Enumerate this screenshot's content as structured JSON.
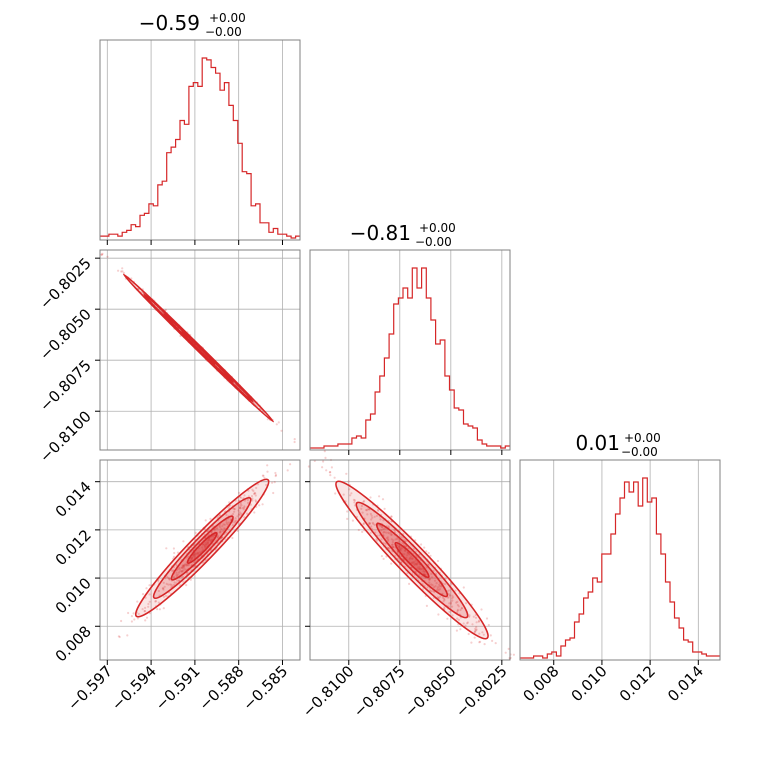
{
  "figure": {
    "colors": {
      "line": "#d62728",
      "grid": "#b0b0b0",
      "frame": "#808080",
      "text": "#000000"
    }
  },
  "titles": [
    {
      "main": "−0.59",
      "sup": "+0.00",
      "sub": "−0.00"
    },
    {
      "main": "−0.81",
      "sup": "+0.00",
      "sub": "−0.00"
    },
    {
      "main": "0.01",
      "sup": "+0.00",
      "sub": "−0.00"
    }
  ],
  "chart_data": [
    {
      "type": "histogram",
      "panel": "diag-p1",
      "xlim": [
        -0.5975,
        -0.5838
      ],
      "x_ticks": [
        -0.597,
        -0.594,
        -0.591,
        -0.588,
        -0.585
      ],
      "x_tick_labels": [
        "−0.597",
        "−0.594",
        "−0.591",
        "−0.588",
        "−0.585"
      ],
      "bin_edges": [
        -0.5975,
        -0.5838
      ],
      "counts": [
        1,
        1,
        2,
        2,
        1,
        3,
        4,
        7,
        6,
        12,
        13,
        18,
        17,
        28,
        30,
        45,
        48,
        52,
        62,
        60,
        80,
        82,
        80,
        95,
        94,
        90,
        87,
        78,
        82,
        70,
        62,
        50,
        35,
        34,
        17,
        18,
        8,
        8,
        3,
        5,
        2,
        2,
        1,
        0,
        1
      ]
    },
    {
      "type": "histogram",
      "panel": "diag-p2",
      "xlim": [
        -0.8119,
        -0.8021
      ],
      "x_ticks": [
        -0.81,
        -0.8075,
        -0.805,
        -0.8025
      ],
      "x_tick_labels": [
        "−0.8100",
        "−0.8075",
        "−0.8050",
        "−0.8025"
      ],
      "bin_edges": [
        -0.8119,
        -0.8021
      ],
      "counts": [
        0,
        0,
        0,
        1,
        1,
        1,
        2,
        2,
        2,
        5,
        6,
        5,
        14,
        17,
        28,
        36,
        45,
        57,
        72,
        75,
        80,
        75,
        90,
        80,
        90,
        75,
        64,
        52,
        54,
        36,
        29,
        20,
        19,
        12,
        11,
        10,
        4,
        2,
        1,
        1,
        1,
        0,
        1
      ]
    },
    {
      "type": "histogram",
      "panel": "diag-p3",
      "xlim": [
        0.0066,
        0.0149
      ],
      "x_ticks": [
        0.008,
        0.01,
        0.012,
        0.014
      ],
      "x_tick_labels": [
        "0.008",
        "0.010",
        "0.012",
        "0.014"
      ],
      "bin_edges": [
        0.0066,
        0.0149
      ],
      "counts": [
        0,
        0,
        0,
        1,
        1,
        0,
        2,
        3,
        1,
        6,
        9,
        10,
        18,
        22,
        30,
        33,
        40,
        38,
        52,
        52,
        62,
        72,
        80,
        88,
        83,
        88,
        76,
        90,
        78,
        80,
        62,
        52,
        38,
        28,
        20,
        15,
        9,
        8,
        3,
        3,
        2,
        1,
        1,
        1
      ]
    },
    {
      "type": "scatter",
      "panel": "p1-vs-p2",
      "xlim": [
        -0.5975,
        -0.5838
      ],
      "ylim": [
        -0.8119,
        -0.8021
      ],
      "y_ticks": [
        -0.8025,
        -0.805,
        -0.8075,
        -0.81
      ],
      "y_tick_labels": [
        "−0.8025",
        "−0.8050",
        "−0.8075",
        "−0.8100"
      ],
      "correlation": "negative",
      "trend": {
        "x": [
          -0.597,
          -0.5845
        ],
        "y": [
          -0.8025,
          -0.8113
        ]
      }
    },
    {
      "type": "scatter",
      "panel": "p1-vs-p3",
      "xlim": [
        -0.5975,
        -0.5838
      ],
      "ylim": [
        0.0066,
        0.0149
      ],
      "y_ticks": [
        0.014,
        0.012,
        0.01,
        0.008
      ],
      "y_tick_labels": [
        "0.014",
        "0.012",
        "0.010",
        "0.008"
      ],
      "correlation": "positive",
      "trend": {
        "x": [
          -0.596,
          -0.585
        ],
        "y": [
          0.0078,
          0.0147
        ]
      }
    },
    {
      "type": "scatter",
      "panel": "p2-vs-p3",
      "xlim": [
        -0.8119,
        -0.8021
      ],
      "ylim": [
        0.0066,
        0.0149
      ],
      "correlation": "negative",
      "trend": {
        "x": [
          -0.8114,
          -0.8024
        ],
        "y": [
          0.0147,
          0.0068
        ]
      }
    }
  ]
}
